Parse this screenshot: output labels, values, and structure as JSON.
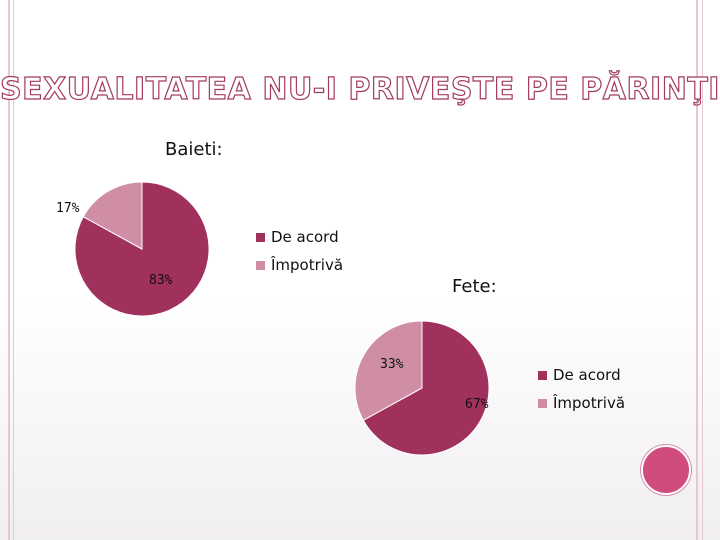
{
  "slide": {
    "title": "SEXUALITATEA NU-I PRIVEŞTE PE PĂRINŢI"
  },
  "colors": {
    "accent": "#a0305c",
    "secondary": "#cf8ea4",
    "frame": "#d7a9ba",
    "circle": "#cf4c7c"
  },
  "chart_data": [
    {
      "type": "pie",
      "title": "Baieti:",
      "categories": [
        "De acord",
        "Împotrivă"
      ],
      "values": [
        83,
        17
      ],
      "labels": [
        "83%",
        "17%"
      ],
      "legend": "right"
    },
    {
      "type": "pie",
      "title": "Fete:",
      "categories": [
        "De acord",
        "Împotrivă"
      ],
      "values": [
        67,
        33
      ],
      "labels": [
        "67%",
        "33%"
      ],
      "legend": "right"
    }
  ]
}
